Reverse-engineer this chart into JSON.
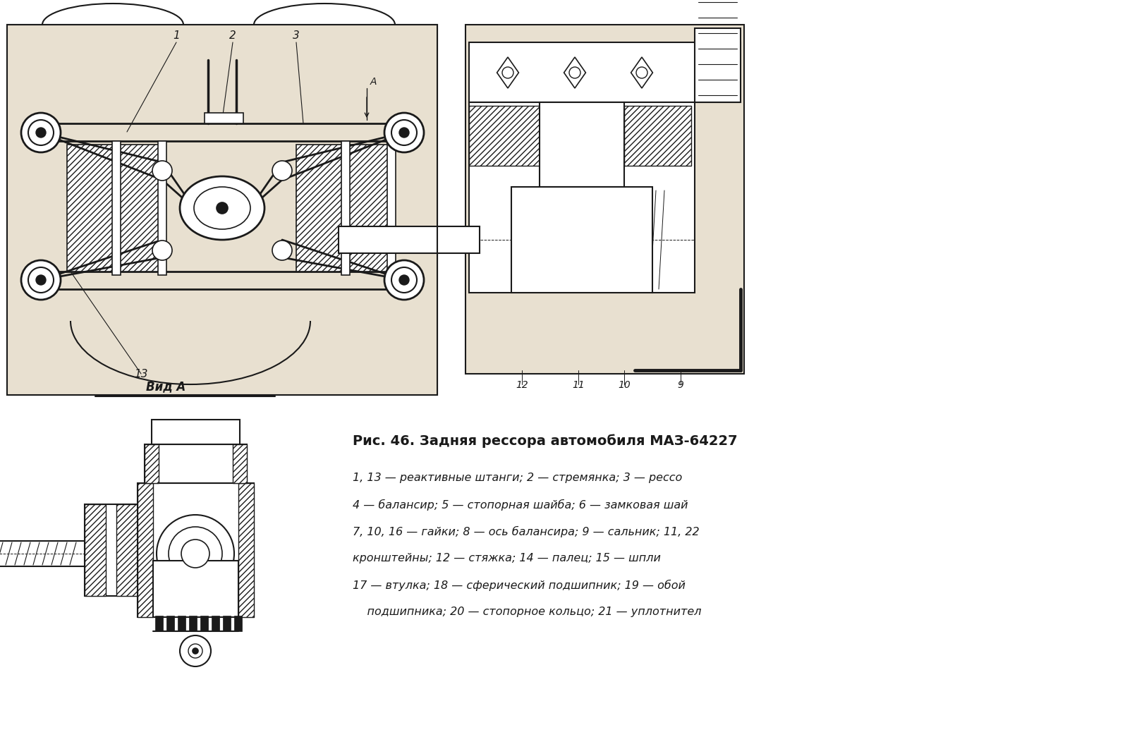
{
  "bg_color": "#ffffff",
  "fig_width": 16.05,
  "fig_height": 10.45,
  "dpi": 100,
  "title": "Рис. 46. Задняя рессора автомобиля МАЗ-64227",
  "caption_line1": "1, 13 — реактивные штанги; 2 — стремянка; 3 — рессо",
  "caption_line2": "4 — балансир; 5 — стопорная шайба; 6 — замковая шай",
  "caption_line3": "7, 10, 16 — гайки; 8 — ось балансира; 9 — сальник; 11, 22",
  "caption_line4": "кронштейны; 12 — стяжка; 14 — палец; 15 — шпли",
  "caption_line5": "17 — втулка; 18 — сферический подшипник; 19 — обой",
  "caption_line6": "    подшипника; 20 — стопорное кольцо; 21 — уплотнител",
  "lc": "#1a1a1a",
  "paper_color": "#e8e0d0",
  "white": "#ffffff"
}
